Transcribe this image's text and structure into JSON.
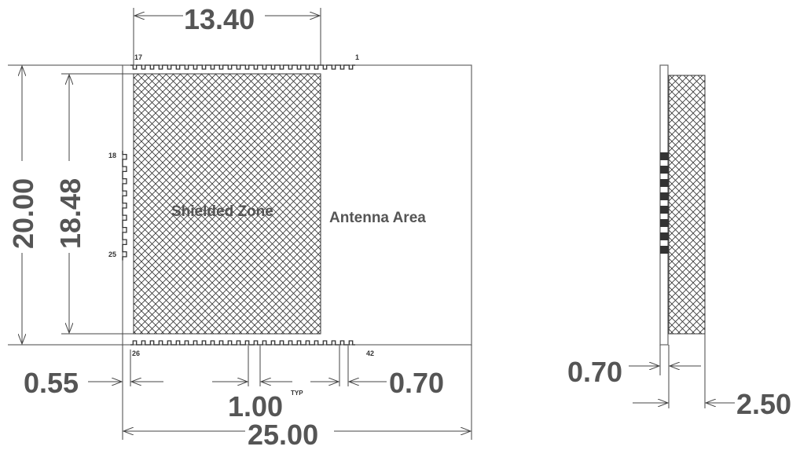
{
  "dimensions": {
    "top_width": "13.40",
    "height_total": "20.00",
    "height_inner": "18.48",
    "left_offset": "0.55",
    "pitch": "1.00",
    "pitch_note": "TYP",
    "right_offset": "0.70",
    "total_width": "25.00",
    "side_thickness": "0.70",
    "side_depth": "2.50"
  },
  "pins": {
    "top_left": "17",
    "top_right": "1",
    "left_top": "18",
    "left_bottom": "25",
    "bottom_left": "26",
    "bottom_right": "42"
  },
  "zones": {
    "shielded": "Shielded Zone",
    "antenna": "Antenna Area"
  },
  "colors": {
    "text": "#555555",
    "lines": "#444444",
    "hatch": "#333333"
  }
}
